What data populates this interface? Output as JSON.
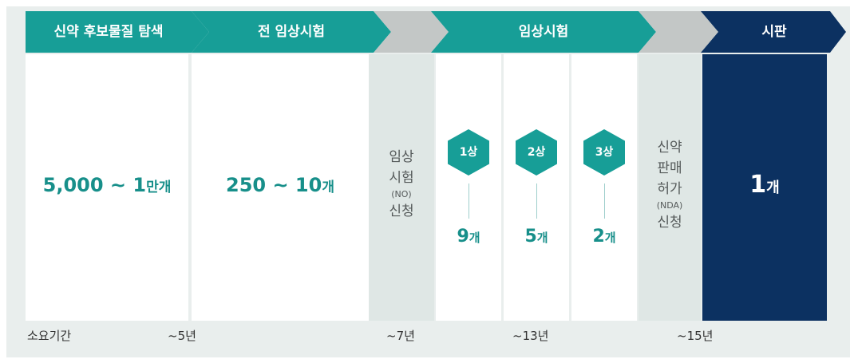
{
  "stages": [
    {
      "label": "신약 후보물질 탐색"
    },
    {
      "label": "전 임상시험"
    },
    {
      "label": "임상시험"
    },
    {
      "label": "시판"
    }
  ],
  "discovery": {
    "value": "5,000 ~ 1",
    "unit": "만개"
  },
  "preclinical": {
    "value": "250 ~ 10",
    "unit": "개"
  },
  "ind_application": {
    "line1": "임상",
    "line2": "시험",
    "abbr": "(NO)",
    "line3": "신청"
  },
  "phases": [
    {
      "hex": "1상",
      "count": "9",
      "unit": "개"
    },
    {
      "hex": "2상",
      "count": "5",
      "unit": "개"
    },
    {
      "hex": "3상",
      "count": "2",
      "unit": "개"
    }
  ],
  "nda_application": {
    "line1": "신약",
    "line2": "판매",
    "line3": "허가",
    "abbr": "(NDA)",
    "line4": "신청"
  },
  "market": {
    "count": "1",
    "unit": "개"
  },
  "timeline": {
    "label": "소요기간",
    "marks": [
      "~5년",
      "~7년",
      "~13년",
      "~15년"
    ]
  },
  "colors": {
    "teal": "#179e97",
    "grey_arrow": "#c3c7c6",
    "navy": "#0c3161",
    "accent_text": "#178f8a"
  }
}
